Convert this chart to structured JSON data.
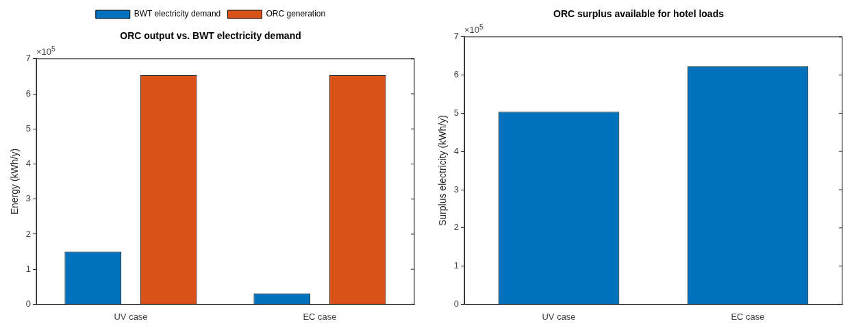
{
  "chart_data": [
    {
      "type": "bar",
      "title": "ORC output vs. BWT electricity demand",
      "ylabel": "Energy (kWh/y)",
      "categories": [
        "UV case",
        "EC case"
      ],
      "series": [
        {
          "name": "BWT electricity demand",
          "color": "#0072bd",
          "values": [
            1.5,
            0.31
          ]
        },
        {
          "name": "ORC generation",
          "color": "#d95319",
          "values": [
            6.53,
            6.53
          ]
        }
      ],
      "ylim": [
        0,
        7
      ],
      "yticks": [
        0,
        1,
        2,
        3,
        4,
        5,
        6,
        7
      ],
      "annotations": [
        "×10$^{5}$"
      ],
      "grid": false,
      "legend": "top"
    },
    {
      "type": "bar",
      "title": "ORC surplus available for hotel loads",
      "ylabel": "Surplus electricity (kWh/y)",
      "categories": [
        "UV case",
        "EC case"
      ],
      "values": [
        5.04,
        6.23
      ],
      "color": "#0072bd",
      "ylim": [
        0,
        7
      ],
      "yticks": [
        0,
        1,
        2,
        3,
        4,
        5,
        6,
        7
      ],
      "annotations": [
        "×10$^{5}$"
      ],
      "grid": false,
      "legend": false
    }
  ]
}
